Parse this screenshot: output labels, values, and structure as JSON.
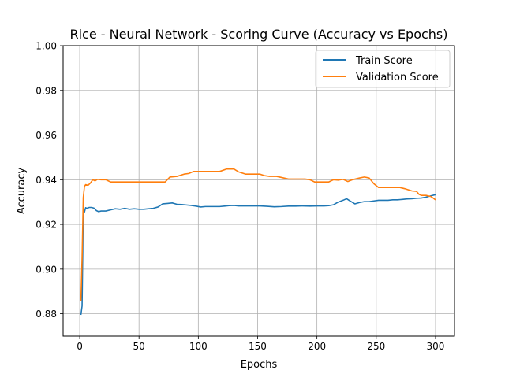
{
  "chart_data": {
    "type": "line",
    "title": "Rice - Neural Network - Scoring Curve (Accuracy vs Epochs)",
    "xlabel": "Epochs",
    "ylabel": "Accuracy",
    "xlim": [
      -14,
      316
    ],
    "ylim": [
      0.87,
      1.0
    ],
    "xticks": [
      0,
      50,
      100,
      150,
      200,
      250,
      300
    ],
    "yticks": [
      0.88,
      0.9,
      0.92,
      0.94,
      0.96,
      0.98,
      1.0
    ],
    "ytick_decimals": 2,
    "grid": true,
    "legend_position": "upper-right",
    "series": [
      {
        "name": "Train Score",
        "color": "#1f77b4",
        "points": [
          [
            1,
            0.8795
          ],
          [
            2,
            0.8835
          ],
          [
            3,
            0.927
          ],
          [
            4,
            0.9255
          ],
          [
            5,
            0.9275
          ],
          [
            6,
            0.9272
          ],
          [
            8,
            0.9276
          ],
          [
            10,
            0.9276
          ],
          [
            12,
            0.9273
          ],
          [
            14,
            0.9262
          ],
          [
            16,
            0.9257
          ],
          [
            18,
            0.926
          ],
          [
            22,
            0.926
          ],
          [
            26,
            0.9265
          ],
          [
            30,
            0.927
          ],
          [
            34,
            0.9268
          ],
          [
            38,
            0.9272
          ],
          [
            42,
            0.9268
          ],
          [
            46,
            0.927
          ],
          [
            50,
            0.9268
          ],
          [
            54,
            0.9268
          ],
          [
            58,
            0.927
          ],
          [
            62,
            0.9272
          ],
          [
            66,
            0.9278
          ],
          [
            70,
            0.9292
          ],
          [
            74,
            0.9294
          ],
          [
            78,
            0.9296
          ],
          [
            82,
            0.929
          ],
          [
            86,
            0.9289
          ],
          [
            90,
            0.9287
          ],
          [
            94,
            0.9285
          ],
          [
            98,
            0.9282
          ],
          [
            102,
            0.9278
          ],
          [
            106,
            0.928
          ],
          [
            110,
            0.928
          ],
          [
            114,
            0.928
          ],
          [
            118,
            0.928
          ],
          [
            122,
            0.9282
          ],
          [
            126,
            0.9284
          ],
          [
            130,
            0.9285
          ],
          [
            134,
            0.9283
          ],
          [
            140,
            0.9283
          ],
          [
            146,
            0.9283
          ],
          [
            152,
            0.9283
          ],
          [
            158,
            0.9281
          ],
          [
            164,
            0.9279
          ],
          [
            170,
            0.928
          ],
          [
            176,
            0.9282
          ],
          [
            182,
            0.9282
          ],
          [
            188,
            0.9283
          ],
          [
            194,
            0.9282
          ],
          [
            200,
            0.9283
          ],
          [
            206,
            0.9283
          ],
          [
            210,
            0.9284
          ],
          [
            214,
            0.9288
          ],
          [
            218,
            0.93
          ],
          [
            222,
            0.9308
          ],
          [
            225,
            0.9315
          ],
          [
            228,
            0.9305
          ],
          [
            232,
            0.9292
          ],
          [
            236,
            0.9298
          ],
          [
            240,
            0.9302
          ],
          [
            244,
            0.9302
          ],
          [
            248,
            0.9305
          ],
          [
            252,
            0.9308
          ],
          [
            256,
            0.9308
          ],
          [
            260,
            0.9308
          ],
          [
            264,
            0.931
          ],
          [
            268,
            0.931
          ],
          [
            272,
            0.9312
          ],
          [
            276,
            0.9314
          ],
          [
            280,
            0.9315
          ],
          [
            284,
            0.9317
          ],
          [
            288,
            0.9318
          ],
          [
            292,
            0.9322
          ],
          [
            296,
            0.9328
          ],
          [
            300,
            0.9333
          ]
        ]
      },
      {
        "name": "Validation Score",
        "color": "#ff7f0e",
        "points": [
          [
            1,
            0.8855
          ],
          [
            2,
            0.905
          ],
          [
            3,
            0.932
          ],
          [
            4,
            0.937
          ],
          [
            5,
            0.9378
          ],
          [
            7,
            0.9375
          ],
          [
            9,
            0.9385
          ],
          [
            11,
            0.94
          ],
          [
            13,
            0.9395
          ],
          [
            15,
            0.9402
          ],
          [
            18,
            0.94
          ],
          [
            22,
            0.94
          ],
          [
            26,
            0.939
          ],
          [
            30,
            0.939
          ],
          [
            40,
            0.939
          ],
          [
            50,
            0.939
          ],
          [
            60,
            0.939
          ],
          [
            68,
            0.939
          ],
          [
            72,
            0.939
          ],
          [
            76,
            0.9412
          ],
          [
            82,
            0.9415
          ],
          [
            88,
            0.9425
          ],
          [
            92,
            0.9428
          ],
          [
            96,
            0.9437
          ],
          [
            100,
            0.9437
          ],
          [
            106,
            0.9437
          ],
          [
            112,
            0.9437
          ],
          [
            118,
            0.9437
          ],
          [
            124,
            0.9448
          ],
          [
            130,
            0.9448
          ],
          [
            134,
            0.9435
          ],
          [
            140,
            0.9425
          ],
          [
            146,
            0.9425
          ],
          [
            152,
            0.9425
          ],
          [
            156,
            0.9418
          ],
          [
            160,
            0.9415
          ],
          [
            166,
            0.9415
          ],
          [
            172,
            0.9408
          ],
          [
            176,
            0.9403
          ],
          [
            182,
            0.9403
          ],
          [
            190,
            0.9403
          ],
          [
            194,
            0.94
          ],
          [
            198,
            0.939
          ],
          [
            204,
            0.939
          ],
          [
            210,
            0.939
          ],
          [
            214,
            0.94
          ],
          [
            218,
            0.9398
          ],
          [
            222,
            0.9402
          ],
          [
            226,
            0.9392
          ],
          [
            230,
            0.94
          ],
          [
            236,
            0.9408
          ],
          [
            240,
            0.9412
          ],
          [
            244,
            0.9408
          ],
          [
            248,
            0.9382
          ],
          [
            252,
            0.9365
          ],
          [
            258,
            0.9365
          ],
          [
            264,
            0.9365
          ],
          [
            270,
            0.9365
          ],
          [
            274,
            0.936
          ],
          [
            280,
            0.935
          ],
          [
            284,
            0.9348
          ],
          [
            286,
            0.9335
          ],
          [
            288,
            0.933
          ],
          [
            292,
            0.933
          ],
          [
            296,
            0.9325
          ],
          [
            298,
            0.9318
          ],
          [
            300,
            0.931
          ]
        ]
      }
    ]
  }
}
